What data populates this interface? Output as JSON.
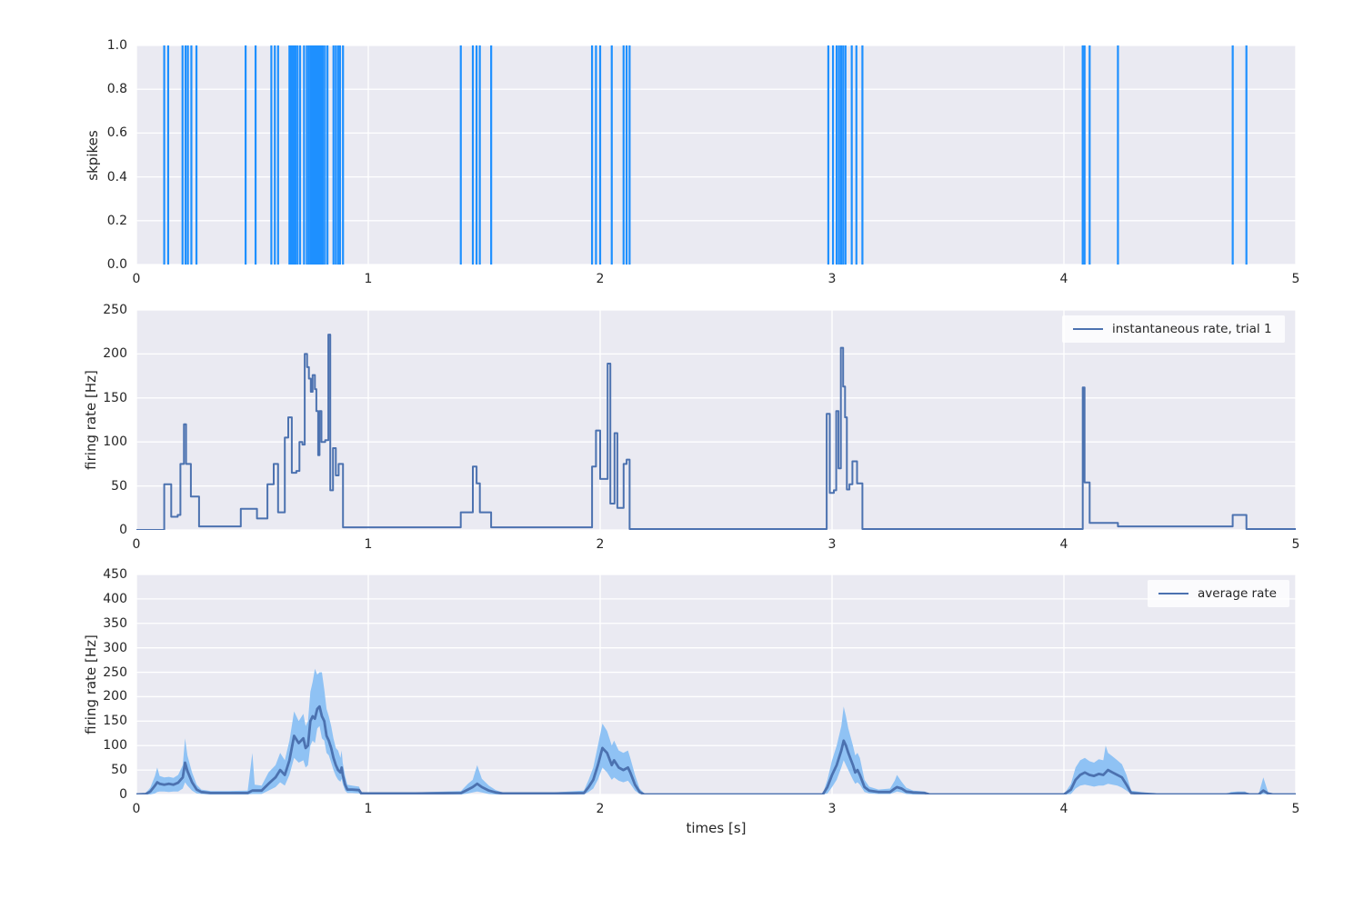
{
  "xlabel": "times [s]",
  "x_tick_labels": [
    "0",
    "1",
    "2",
    "3",
    "4",
    "5"
  ],
  "x_tick_values": [
    0,
    1,
    2,
    3,
    4,
    5
  ],
  "colors": {
    "figure_bg": "#ffffff",
    "axes_bg": "#EAEAF2",
    "grid": "#ffffff",
    "text": "#262626",
    "spike_blue": "#1E90FF",
    "line_blue": "#4C72B0",
    "band_blue": "#8FC2F4"
  },
  "chart_data": [
    {
      "type": "event-raster",
      "ylabel": "skpikes",
      "xlim": [
        0,
        5
      ],
      "ylim": [
        0,
        1
      ],
      "grid": true,
      "yticks": [
        [
          0,
          "0.0"
        ],
        [
          0.2,
          "0.2"
        ],
        [
          0.4,
          "0.4"
        ],
        [
          0.6,
          "0.6"
        ],
        [
          0.8,
          "0.8"
        ],
        [
          1,
          "1.0"
        ]
      ],
      "spike_color": "#1E90FF",
      "spike_times": [
        0.12,
        0.137,
        0.199,
        0.212,
        0.222,
        0.237,
        0.259,
        0.471,
        0.514,
        0.582,
        0.597,
        0.611,
        0.66,
        0.666,
        0.672,
        0.679,
        0.686,
        0.695,
        0.706,
        0.723,
        0.735,
        0.744,
        0.752,
        0.758,
        0.763,
        0.768,
        0.773,
        0.778,
        0.783,
        0.788,
        0.793,
        0.798,
        0.804,
        0.813,
        0.824,
        0.85,
        0.86,
        0.87,
        0.878,
        0.891,
        1.399,
        1.451,
        1.467,
        1.481,
        1.53,
        1.965,
        1.982,
        2.0,
        2.05,
        2.101,
        2.114,
        2.127,
        2.984,
        3.004,
        3.02,
        3.03,
        3.039,
        3.048,
        3.058,
        3.085,
        3.105,
        3.131,
        4.081,
        4.089,
        4.111,
        4.233,
        4.728,
        4.787
      ]
    },
    {
      "type": "step-line",
      "ylabel": "firing rate [Hz]",
      "legend": "instantaneous rate, trial 1",
      "legend_position": "upper right",
      "xlim": [
        0,
        5
      ],
      "ylim": [
        0,
        250
      ],
      "grid": true,
      "yticks": [
        [
          0,
          "0"
        ],
        [
          50,
          "50"
        ],
        [
          100,
          "100"
        ],
        [
          150,
          "150"
        ],
        [
          200,
          "200"
        ],
        [
          250,
          "250"
        ]
      ],
      "line_color": "#4C72B0",
      "steps_t_rate": [
        [
          0,
          0
        ],
        [
          0.12,
          52
        ],
        [
          0.15,
          15
        ],
        [
          0.178,
          17
        ],
        [
          0.19,
          75
        ],
        [
          0.205,
          120
        ],
        [
          0.214,
          75
        ],
        [
          0.235,
          38
        ],
        [
          0.27,
          4
        ],
        [
          0.45,
          24
        ],
        [
          0.52,
          13
        ],
        [
          0.565,
          52
        ],
        [
          0.592,
          75
        ],
        [
          0.611,
          20
        ],
        [
          0.64,
          105
        ],
        [
          0.655,
          128
        ],
        [
          0.67,
          65
        ],
        [
          0.69,
          67
        ],
        [
          0.703,
          100
        ],
        [
          0.716,
          97
        ],
        [
          0.726,
          200
        ],
        [
          0.736,
          185
        ],
        [
          0.744,
          172
        ],
        [
          0.752,
          157
        ],
        [
          0.76,
          176
        ],
        [
          0.77,
          160
        ],
        [
          0.776,
          135
        ],
        [
          0.784,
          85
        ],
        [
          0.79,
          135
        ],
        [
          0.798,
          100
        ],
        [
          0.814,
          102
        ],
        [
          0.828,
          222
        ],
        [
          0.836,
          45
        ],
        [
          0.848,
          93
        ],
        [
          0.86,
          62
        ],
        [
          0.872,
          75
        ],
        [
          0.891,
          3
        ],
        [
          1.399,
          20
        ],
        [
          1.451,
          72
        ],
        [
          1.467,
          53
        ],
        [
          1.481,
          20
        ],
        [
          1.53,
          3
        ],
        [
          1.965,
          72
        ],
        [
          1.982,
          113
        ],
        [
          2.0,
          58
        ],
        [
          2.032,
          189
        ],
        [
          2.044,
          30
        ],
        [
          2.062,
          110
        ],
        [
          2.074,
          25
        ],
        [
          2.101,
          75
        ],
        [
          2.114,
          80
        ],
        [
          2.127,
          1
        ],
        [
          2.977,
          132
        ],
        [
          2.99,
          42
        ],
        [
          3.008,
          45
        ],
        [
          3.018,
          135
        ],
        [
          3.028,
          70
        ],
        [
          3.038,
          207
        ],
        [
          3.048,
          163
        ],
        [
          3.056,
          128
        ],
        [
          3.064,
          46
        ],
        [
          3.075,
          52
        ],
        [
          3.088,
          78
        ],
        [
          3.108,
          53
        ],
        [
          3.131,
          1
        ],
        [
          4.081,
          162
        ],
        [
          4.089,
          54
        ],
        [
          4.111,
          8
        ],
        [
          4.233,
          4
        ],
        [
          4.728,
          17
        ],
        [
          4.787,
          1
        ],
        [
          5.0,
          1
        ]
      ]
    },
    {
      "type": "line-band",
      "ylabel": "firing rate [Hz]",
      "legend": "average rate",
      "legend_position": "upper right",
      "xlim": [
        0,
        5
      ],
      "ylim": [
        0,
        450
      ],
      "grid": true,
      "yticks": [
        [
          0,
          "0"
        ],
        [
          50,
          "50"
        ],
        [
          100,
          "100"
        ],
        [
          150,
          "150"
        ],
        [
          200,
          "200"
        ],
        [
          250,
          "250"
        ],
        [
          300,
          "300"
        ],
        [
          350,
          "350"
        ],
        [
          400,
          "400"
        ],
        [
          450,
          "450"
        ]
      ],
      "line_color": "#4C72B0",
      "band_color": "#8FC2F4",
      "points_x_lo_mean_hi": [
        [
          0.0,
          0,
          0,
          0
        ],
        [
          0.04,
          0,
          1,
          3
        ],
        [
          0.06,
          0,
          6,
          14
        ],
        [
          0.08,
          2,
          18,
          38
        ],
        [
          0.09,
          5,
          25,
          55
        ],
        [
          0.1,
          6,
          22,
          38
        ],
        [
          0.12,
          6,
          20,
          35
        ],
        [
          0.14,
          5,
          22,
          36
        ],
        [
          0.16,
          6,
          20,
          34
        ],
        [
          0.18,
          6,
          24,
          40
        ],
        [
          0.2,
          12,
          35,
          60
        ],
        [
          0.21,
          25,
          65,
          115
        ],
        [
          0.22,
          18,
          48,
          80
        ],
        [
          0.24,
          8,
          25,
          45
        ],
        [
          0.26,
          2,
          10,
          20
        ],
        [
          0.28,
          1,
          5,
          10
        ],
        [
          0.32,
          0,
          3,
          7
        ],
        [
          0.4,
          0,
          3,
          7
        ],
        [
          0.48,
          0,
          3,
          8
        ],
        [
          0.5,
          1,
          8,
          85
        ],
        [
          0.51,
          1,
          8,
          20
        ],
        [
          0.54,
          1,
          8,
          18
        ],
        [
          0.57,
          8,
          22,
          45
        ],
        [
          0.6,
          15,
          35,
          60
        ],
        [
          0.62,
          25,
          50,
          85
        ],
        [
          0.64,
          18,
          40,
          70
        ],
        [
          0.66,
          40,
          70,
          110
        ],
        [
          0.68,
          75,
          120,
          170
        ],
        [
          0.7,
          65,
          105,
          150
        ],
        [
          0.72,
          70,
          115,
          165
        ],
        [
          0.73,
          55,
          95,
          140
        ],
        [
          0.74,
          60,
          100,
          150
        ],
        [
          0.75,
          100,
          150,
          210
        ],
        [
          0.76,
          110,
          160,
          230
        ],
        [
          0.77,
          105,
          155,
          257
        ],
        [
          0.78,
          135,
          175,
          245
        ],
        [
          0.79,
          140,
          180,
          250
        ],
        [
          0.8,
          115,
          160,
          250
        ],
        [
          0.81,
          110,
          150,
          215
        ],
        [
          0.82,
          85,
          120,
          175
        ],
        [
          0.83,
          80,
          110,
          160
        ],
        [
          0.84,
          65,
          95,
          140
        ],
        [
          0.85,
          50,
          75,
          115
        ],
        [
          0.86,
          38,
          60,
          95
        ],
        [
          0.87,
          30,
          50,
          90
        ],
        [
          0.88,
          26,
          45,
          75
        ],
        [
          0.885,
          32,
          55,
          90
        ],
        [
          0.89,
          22,
          40,
          65
        ],
        [
          0.9,
          8,
          20,
          38
        ],
        [
          0.91,
          3,
          10,
          20
        ],
        [
          0.93,
          3,
          10,
          18
        ],
        [
          0.96,
          2,
          9,
          16
        ],
        [
          0.97,
          0,
          2,
          5
        ],
        [
          1.0,
          0,
          2,
          4
        ],
        [
          1.2,
          0,
          2,
          4
        ],
        [
          1.4,
          0,
          3,
          7
        ],
        [
          1.43,
          2,
          10,
          22
        ],
        [
          1.45,
          4,
          15,
          30
        ],
        [
          1.47,
          6,
          22,
          60
        ],
        [
          1.49,
          4,
          15,
          32
        ],
        [
          1.52,
          1,
          8,
          18
        ],
        [
          1.55,
          0,
          4,
          9
        ],
        [
          1.58,
          0,
          2,
          4
        ],
        [
          1.8,
          0,
          2,
          4
        ],
        [
          1.93,
          0,
          3,
          8
        ],
        [
          1.95,
          5,
          15,
          30
        ],
        [
          1.97,
          12,
          30,
          55
        ],
        [
          1.99,
          30,
          60,
          100
        ],
        [
          2.01,
          55,
          95,
          145
        ],
        [
          2.03,
          45,
          85,
          130
        ],
        [
          2.05,
          30,
          60,
          100
        ],
        [
          2.06,
          35,
          70,
          110
        ],
        [
          2.08,
          28,
          55,
          90
        ],
        [
          2.1,
          25,
          50,
          85
        ],
        [
          2.12,
          28,
          55,
          90
        ],
        [
          2.13,
          22,
          45,
          75
        ],
        [
          2.15,
          8,
          20,
          40
        ],
        [
          2.17,
          1,
          5,
          12
        ],
        [
          2.19,
          0,
          0,
          2
        ],
        [
          2.4,
          0,
          0,
          0
        ],
        [
          2.8,
          0,
          0,
          0
        ],
        [
          2.96,
          0,
          0,
          1
        ],
        [
          2.98,
          2,
          15,
          30
        ],
        [
          3.0,
          15,
          40,
          70
        ],
        [
          3.02,
          30,
          60,
          100
        ],
        [
          3.04,
          55,
          90,
          140
        ],
        [
          3.05,
          70,
          110,
          180
        ],
        [
          3.06,
          60,
          100,
          160
        ],
        [
          3.07,
          50,
          85,
          135
        ],
        [
          3.09,
          30,
          60,
          100
        ],
        [
          3.1,
          22,
          45,
          80
        ],
        [
          3.11,
          25,
          50,
          85
        ],
        [
          3.12,
          20,
          40,
          75
        ],
        [
          3.14,
          5,
          15,
          30
        ],
        [
          3.16,
          2,
          8,
          16
        ],
        [
          3.2,
          1,
          5,
          10
        ],
        [
          3.25,
          1,
          5,
          12
        ],
        [
          3.27,
          4,
          12,
          28
        ],
        [
          3.28,
          6,
          15,
          40
        ],
        [
          3.3,
          4,
          12,
          26
        ],
        [
          3.32,
          1,
          6,
          14
        ],
        [
          3.35,
          0,
          4,
          8
        ],
        [
          3.4,
          0,
          3,
          6
        ],
        [
          3.42,
          0,
          0,
          1
        ],
        [
          3.7,
          0,
          0,
          0
        ],
        [
          4.0,
          0,
          0,
          0
        ],
        [
          4.03,
          1,
          10,
          22
        ],
        [
          4.05,
          12,
          30,
          55
        ],
        [
          4.07,
          18,
          40,
          70
        ],
        [
          4.09,
          20,
          45,
          75
        ],
        [
          4.11,
          18,
          40,
          68
        ],
        [
          4.13,
          16,
          38,
          65
        ],
        [
          4.15,
          18,
          42,
          72
        ],
        [
          4.17,
          18,
          40,
          70
        ],
        [
          4.18,
          20,
          45,
          100
        ],
        [
          4.19,
          22,
          50,
          85
        ],
        [
          4.21,
          20,
          45,
          78
        ],
        [
          4.23,
          18,
          40,
          70
        ],
        [
          4.25,
          14,
          35,
          62
        ],
        [
          4.27,
          8,
          20,
          40
        ],
        [
          4.29,
          1,
          3,
          8
        ],
        [
          4.4,
          0,
          0,
          0
        ],
        [
          4.7,
          0,
          0,
          0
        ],
        [
          4.72,
          0,
          1,
          5
        ],
        [
          4.75,
          0,
          2,
          6
        ],
        [
          4.78,
          0,
          2,
          6
        ],
        [
          4.8,
          0,
          0,
          1
        ],
        [
          4.84,
          0,
          0,
          1
        ],
        [
          4.86,
          1,
          8,
          35
        ],
        [
          4.88,
          0,
          2,
          5
        ],
        [
          4.9,
          0,
          0,
          0
        ],
        [
          5.0,
          0,
          0,
          0
        ]
      ]
    }
  ]
}
